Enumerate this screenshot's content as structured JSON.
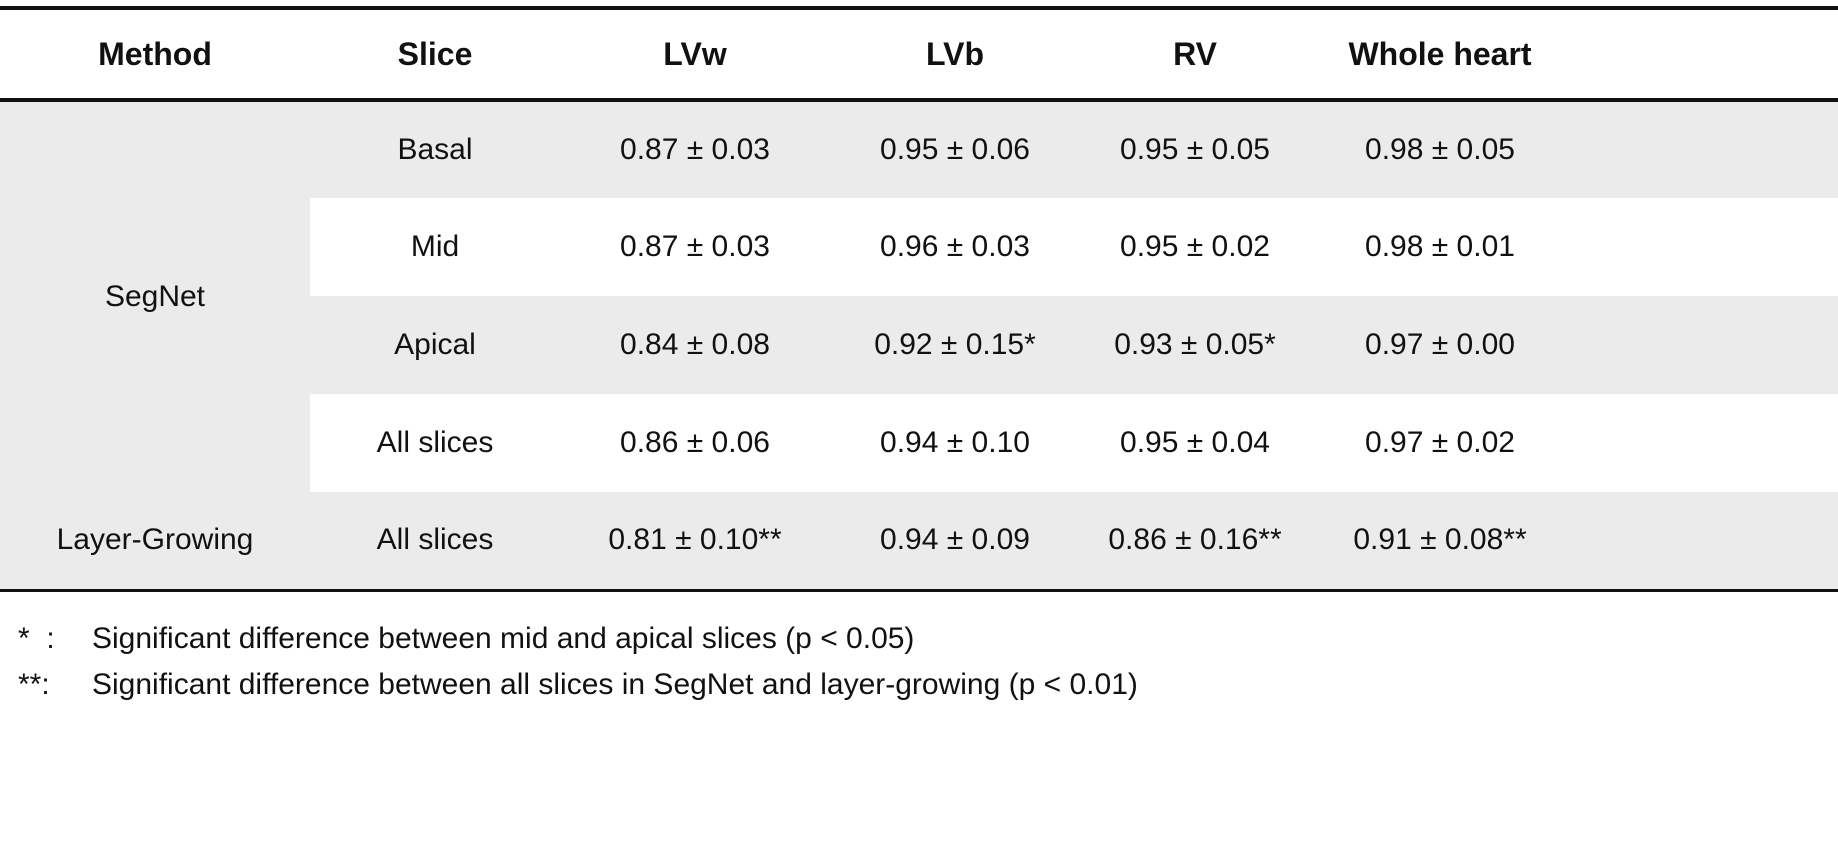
{
  "table": {
    "headers": [
      "Method",
      "Slice",
      "LVw",
      "LVb",
      "RV",
      "Whole heart"
    ],
    "groups": [
      {
        "method": "SegNet",
        "rows": [
          {
            "slice": "Basal",
            "values": [
              "0.87 ± 0.03",
              "0.95 ± 0.06",
              "0.95 ± 0.05",
              "0.98 ± 0.05"
            ]
          },
          {
            "slice": "Mid",
            "values": [
              "0.87 ± 0.03",
              "0.96 ± 0.03",
              "0.95 ± 0.02",
              "0.98 ± 0.01"
            ]
          },
          {
            "slice": "Apical",
            "values": [
              "0.84 ± 0.08",
              "0.92 ± 0.15*",
              "0.93 ± 0.05*",
              "0.97 ± 0.00"
            ]
          },
          {
            "slice": "All slices",
            "values": [
              "0.86 ± 0.06",
              "0.94 ± 0.10",
              "0.95 ± 0.04",
              "0.97 ± 0.02"
            ]
          }
        ]
      },
      {
        "method": "Layer-Growing",
        "rows": [
          {
            "slice": "All slices",
            "values": [
              "0.81 ± 0.10**",
              "0.94 ± 0.09",
              "0.86 ± 0.16**",
              "0.91 ± 0.08**"
            ]
          }
        ]
      }
    ],
    "footnotes": [
      {
        "marker": "*  :",
        "text": "Significant difference between mid and apical slices (p < 0.05)"
      },
      {
        "marker": "**:",
        "text": "Significant difference between all slices in SegNet and layer-growing (p < 0.01)"
      }
    ],
    "colors": {
      "band_gray": "#ebebeb",
      "rule_black": "#111111"
    }
  }
}
